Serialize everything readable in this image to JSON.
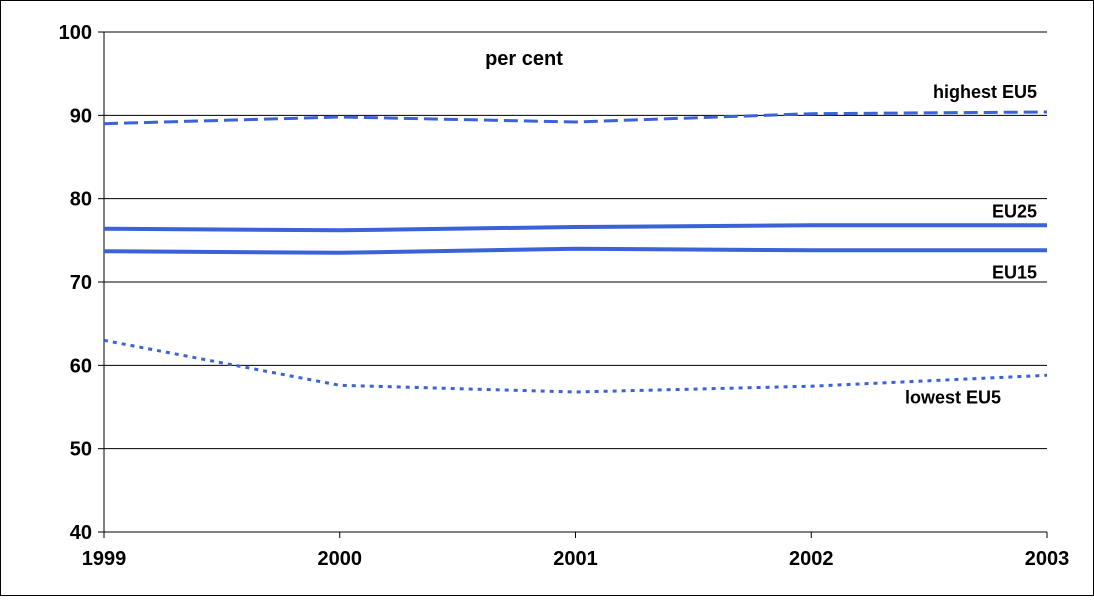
{
  "chart_data": {
    "type": "line",
    "title": "per cent",
    "x": [
      "1999",
      "2000",
      "2001",
      "2002",
      "2003"
    ],
    "ylim": [
      40,
      100
    ],
    "yticks": [
      40,
      50,
      60,
      70,
      80,
      90,
      100
    ],
    "grid": true,
    "line_color": "#3B62D6",
    "series": [
      {
        "name": "highest EU5",
        "style": "dashed",
        "values": [
          89.0,
          89.8,
          89.2,
          90.2,
          90.4
        ]
      },
      {
        "name": "EU25",
        "style": "solid",
        "values": [
          76.4,
          76.2,
          76.6,
          76.8,
          76.8
        ]
      },
      {
        "name": "EU15",
        "style": "solid",
        "values": [
          73.7,
          73.5,
          74.0,
          73.8,
          73.8
        ]
      },
      {
        "name": "lowest EU5",
        "style": "dotted",
        "values": [
          63.0,
          57.6,
          56.8,
          57.5,
          58.8
        ]
      }
    ]
  }
}
